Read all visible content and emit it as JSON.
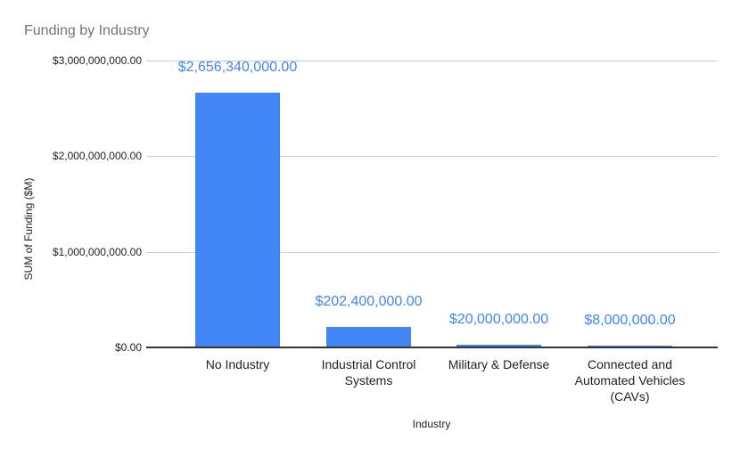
{
  "chart_data": {
    "type": "bar",
    "title": "Funding by Industry",
    "xlabel": "Industry",
    "ylabel": "SUM of Funding ($M)",
    "categories": [
      "No Industry",
      "Industrial Control Systems",
      "Military & Defense",
      "Connected and Automated Vehicles (CAVs)"
    ],
    "values": [
      2656340000,
      202400000,
      20000000,
      8000000
    ],
    "data_labels": [
      "$2,656,340,000.00",
      "$202,400,000.00",
      "$20,000,000.00",
      "$8,000,000.00"
    ],
    "y_ticks": [
      {
        "value": 0,
        "label": "$0.00"
      },
      {
        "value": 1000000000,
        "label": "$1,000,000,000.00"
      },
      {
        "value": 2000000000,
        "label": "$2,000,000,000.00"
      },
      {
        "value": 3000000000,
        "label": "$3,000,000,000.00"
      }
    ],
    "ylim": [
      0,
      3000000000
    ],
    "grid": true,
    "legend": "none"
  },
  "colors": {
    "bar": "#4285F4",
    "data_label": "#4285F4",
    "title_text": "#757575",
    "axis_text": "#222222",
    "gridline": "#cccccc",
    "axis_line": "#333333",
    "background": "#ffffff"
  }
}
